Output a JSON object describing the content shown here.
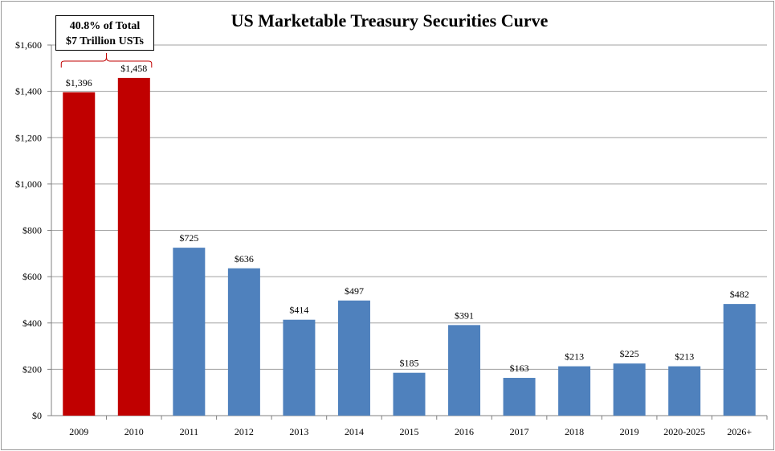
{
  "chart_data": {
    "type": "bar",
    "title": "US Marketable Treasury Securities Curve",
    "xlabel": "",
    "ylabel": "",
    "categories": [
      "2009",
      "2010",
      "2011",
      "2012",
      "2013",
      "2014",
      "2015",
      "2016",
      "2017",
      "2018",
      "2019",
      "2020-2025",
      "2026+"
    ],
    "values": [
      1396,
      1458,
      725,
      636,
      414,
      497,
      185,
      391,
      163,
      213,
      225,
      213,
      482
    ],
    "data_labels": [
      "$1,396",
      "$1,458",
      "$725",
      "$636",
      "$414",
      "$497",
      "$185",
      "$391",
      "$163",
      "$213",
      "$225",
      "$213",
      "$482"
    ],
    "ylim": [
      0,
      1600
    ],
    "yticks": [
      0,
      200,
      400,
      600,
      800,
      1000,
      1200,
      1400,
      1600
    ],
    "ytick_labels": [
      "$0",
      "$200",
      "$400",
      "$600",
      "$800",
      "$1,000",
      "$1,200",
      "$1,400",
      "$1,600"
    ],
    "grid": true,
    "colors": {
      "highlight": "#c00000",
      "default": "#4f81bd"
    },
    "highlighted_categories": [
      "2009",
      "2010"
    ],
    "annotation": {
      "line1": "40.8% of Total",
      "line2": "$7 Trillion USTs",
      "bracket_color": "#c00000"
    }
  }
}
